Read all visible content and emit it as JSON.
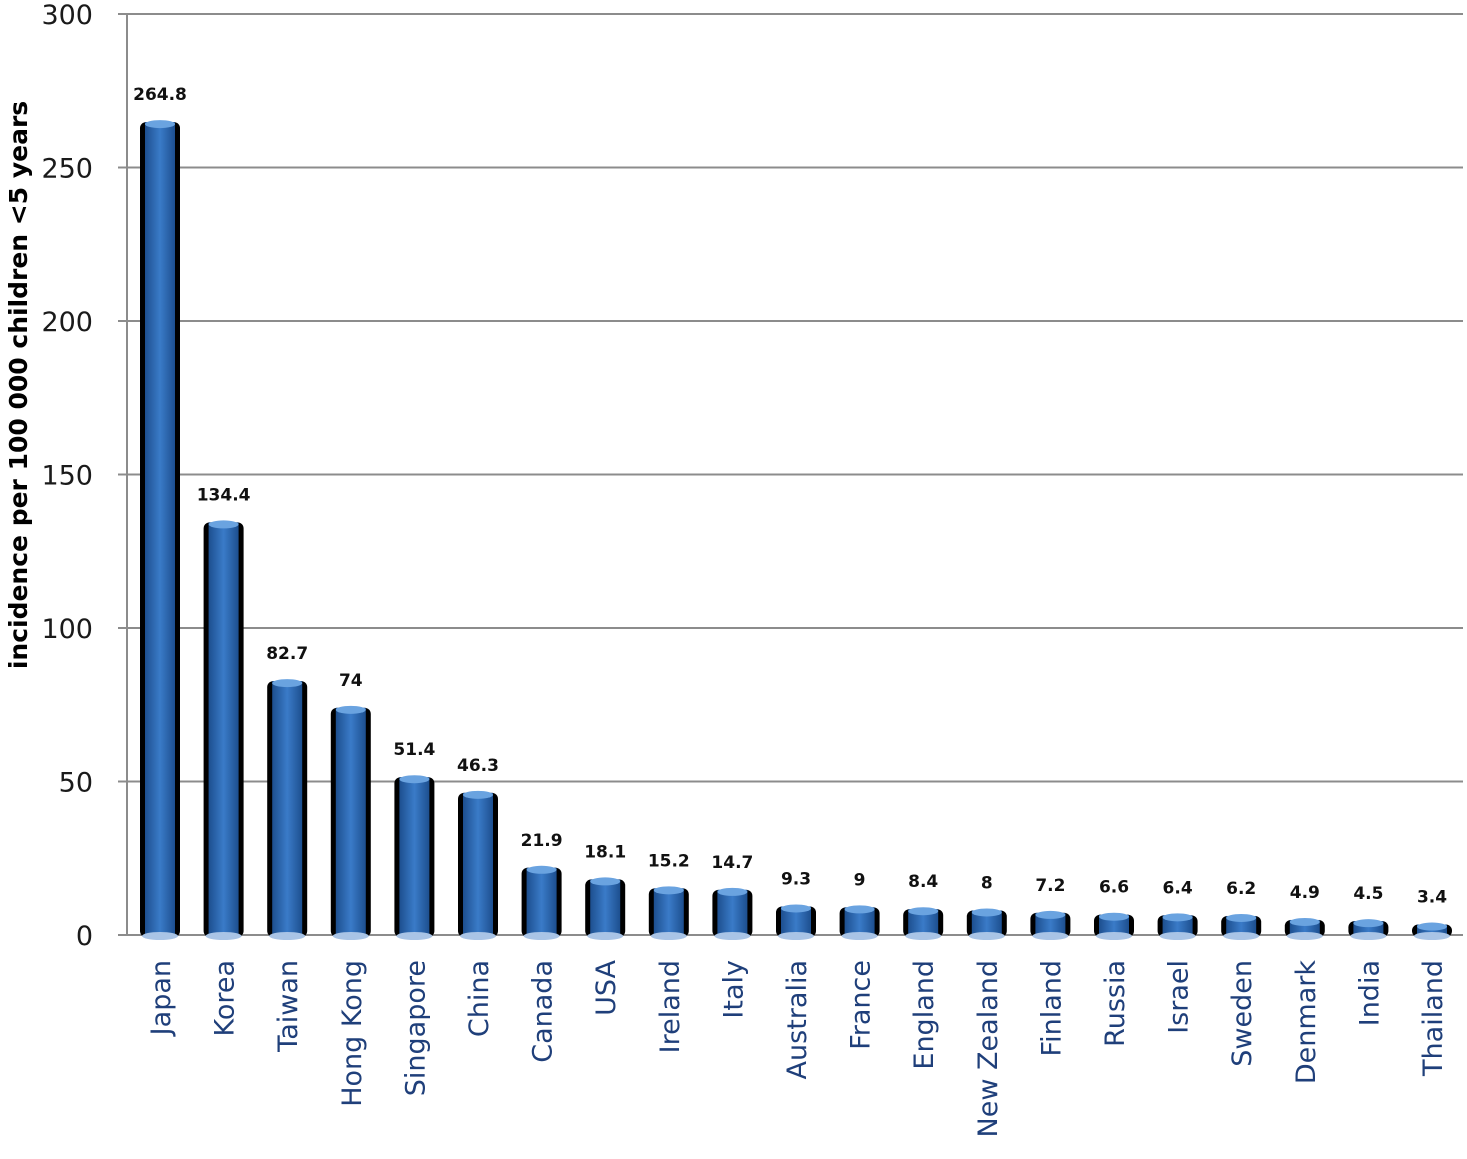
{
  "chart_data": {
    "type": "bar",
    "title": "",
    "xlabel": "",
    "ylabel": "incidence per 100 000 children <5 years",
    "ylim": [
      0,
      300
    ],
    "yticks": [
      0,
      50,
      100,
      150,
      200,
      250,
      300
    ],
    "grid": true,
    "legend": "none",
    "categories": [
      "Japan",
      "Korea",
      "Taiwan",
      "Hong Kong",
      "Singapore",
      "China",
      "Canada",
      "USA",
      "Ireland",
      "Italy",
      "Australia",
      "France",
      "England",
      "New Zealand",
      "Finland",
      "Russia",
      "Israel",
      "Sweden",
      "Denmark",
      "India",
      "Thailand"
    ],
    "values": [
      264.8,
      134.4,
      82.7,
      74,
      51.4,
      46.3,
      21.9,
      18.1,
      15.2,
      14.7,
      9.3,
      9,
      8.4,
      8,
      7.2,
      6.6,
      6.4,
      6.2,
      4.9,
      4.5,
      3.4
    ],
    "data_labels": [
      "264.8",
      "134.4",
      "82.7",
      "74",
      "51.4",
      "46.3",
      "21.9",
      "18.1",
      "15.2",
      "14.7",
      "9.3",
      "9",
      "8.4",
      "8",
      "7.2",
      "6.6",
      "6.4",
      "6.2",
      "4.9",
      "4.5",
      "3.4"
    ],
    "colors": {
      "bar_fill": "#2f6db8",
      "bar_highlight": "#6aa3e0",
      "bar_shadow": "#000000",
      "grid": "#8c8c8c",
      "category_text": "#1f3f7a"
    }
  }
}
